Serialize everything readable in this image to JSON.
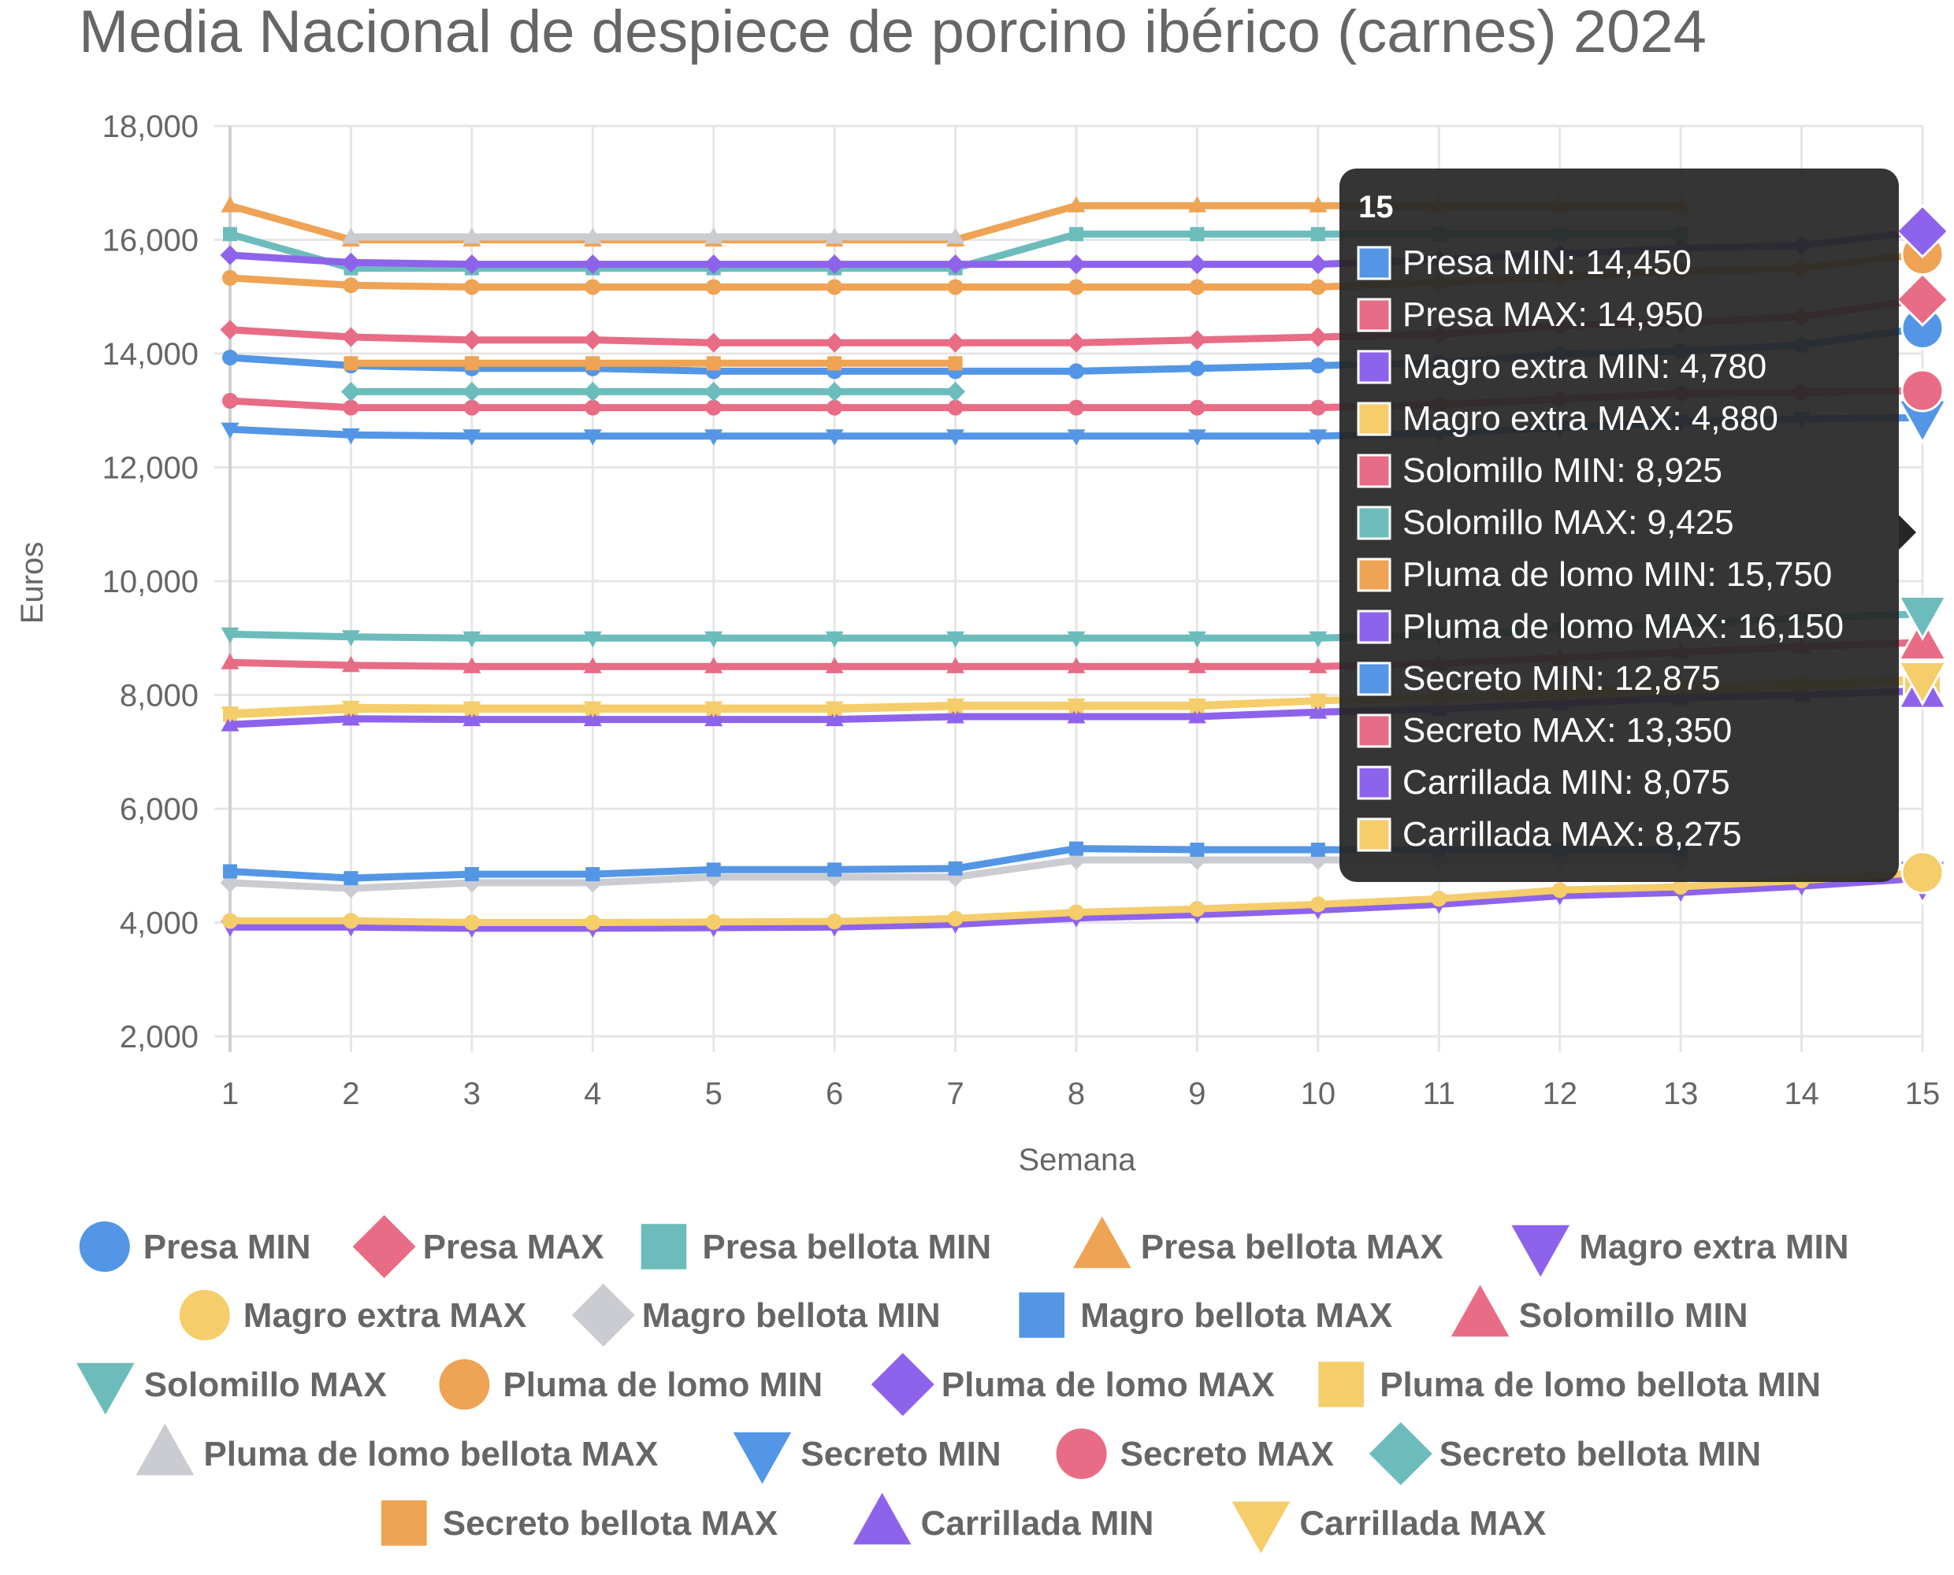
{
  "chart_data": {
    "type": "line",
    "title": "Media Nacional de despiece de porcino ibérico (carnes) 2024",
    "xlabel": "Semana",
    "ylabel": "Euros",
    "ylim": [
      2000,
      18000
    ],
    "yticks": [
      2000,
      4000,
      6000,
      8000,
      10000,
      12000,
      14000,
      16000,
      18000
    ],
    "ytick_labels": [
      "2,000",
      "4,000",
      "6,000",
      "8,000",
      "10,000",
      "12,000",
      "14,000",
      "16,000",
      "18,000"
    ],
    "x": [
      1,
      2,
      3,
      4,
      5,
      6,
      7,
      8,
      9,
      10,
      11,
      12,
      13,
      14,
      15
    ],
    "grid": true,
    "legend_position": "bottom",
    "series": [
      {
        "name": "Presa MIN",
        "color": "#5496e6",
        "marker": "circle",
        "values": [
          13930,
          13790,
          13740,
          13740,
          13690,
          13690,
          13690,
          13690,
          13740,
          13790,
          13840,
          13990,
          14040,
          14150,
          14450
        ]
      },
      {
        "name": "Presa MAX",
        "color": "#e86c85",
        "marker": "diamond",
        "values": [
          14420,
          14290,
          14240,
          14240,
          14190,
          14190,
          14190,
          14190,
          14240,
          14290,
          14340,
          14490,
          14540,
          14650,
          14950
        ]
      },
      {
        "name": "Presa bellota MIN",
        "color": "#6dbcbc",
        "marker": "square",
        "values": [
          16100,
          15500,
          15500,
          15500,
          15500,
          15500,
          15500,
          16100,
          16100,
          16100,
          16100,
          16100,
          16100,
          null,
          null
        ]
      },
      {
        "name": "Presa bellota MAX",
        "color": "#eea355",
        "marker": "triangle",
        "values": [
          16600,
          16000,
          16000,
          16000,
          16000,
          16000,
          16000,
          16600,
          16600,
          16600,
          16600,
          16600,
          16600,
          null,
          null
        ]
      },
      {
        "name": "Magro extra MIN",
        "color": "#8e63ec",
        "marker": "triangle-down",
        "values": [
          3920,
          3920,
          3900,
          3900,
          3910,
          3920,
          3970,
          4080,
          4140,
          4220,
          4320,
          4470,
          4530,
          4640,
          4780
        ]
      },
      {
        "name": "Magro extra MAX",
        "color": "#f5cd6a",
        "marker": "circle",
        "values": [
          4030,
          4030,
          4000,
          4000,
          4010,
          4020,
          4070,
          4180,
          4240,
          4320,
          4420,
          4570,
          4630,
          4740,
          4880
        ]
      },
      {
        "name": "Magro bellota MIN",
        "color": "#cbccd1",
        "marker": "diamond",
        "values": [
          4700,
          4600,
          4700,
          4700,
          4800,
          4800,
          4800,
          5100,
          5100,
          5100,
          5100,
          5100,
          5100,
          null,
          null
        ]
      },
      {
        "name": "Magro bellota MAX",
        "color": "#5496e6",
        "marker": "square",
        "values": [
          4900,
          4780,
          4850,
          4850,
          4930,
          4930,
          4950,
          5300,
          5280,
          5280,
          5280,
          5280,
          5280,
          null,
          null
        ]
      },
      {
        "name": "Solomillo MIN",
        "color": "#e86c85",
        "marker": "triangle",
        "values": [
          8570,
          8520,
          8500,
          8500,
          8500,
          8500,
          8500,
          8500,
          8500,
          8500,
          8550,
          8650,
          8750,
          8850,
          8925
        ]
      },
      {
        "name": "Solomillo MAX",
        "color": "#6dbcbc",
        "marker": "triangle-down",
        "values": [
          9070,
          9020,
          9000,
          9000,
          9000,
          9000,
          9000,
          9000,
          9000,
          9000,
          9050,
          9150,
          9250,
          9350,
          9425
        ]
      },
      {
        "name": "Pluma de lomo MIN",
        "color": "#eea355",
        "marker": "circle",
        "values": [
          15330,
          15200,
          15170,
          15170,
          15170,
          15170,
          15170,
          15170,
          15170,
          15170,
          15250,
          15350,
          15450,
          15500,
          15750
        ]
      },
      {
        "name": "Pluma de lomo MAX",
        "color": "#8e63ec",
        "marker": "diamond",
        "values": [
          15730,
          15600,
          15570,
          15570,
          15570,
          15570,
          15570,
          15570,
          15570,
          15570,
          15650,
          15750,
          15850,
          15900,
          16150
        ]
      },
      {
        "name": "Pluma de lomo bellota MIN",
        "color": "#f5cd6a",
        "marker": "square",
        "values": [
          7650,
          7750,
          7750,
          7750,
          7750,
          7750,
          7800,
          7800,
          7800,
          7900,
          7950,
          8000,
          8050,
          8150,
          8250
        ]
      },
      {
        "name": "Pluma de lomo bellota MAX",
        "color": "#cbccd1",
        "marker": "triangle",
        "values": [
          null,
          16050,
          16050,
          16050,
          16050,
          16050,
          16050,
          null,
          null,
          null,
          null,
          null,
          null,
          null,
          null
        ]
      },
      {
        "name": "Secreto MIN",
        "color": "#5496e6",
        "marker": "triangle-down",
        "values": [
          12670,
          12570,
          12550,
          12550,
          12550,
          12550,
          12550,
          12550,
          12550,
          12550,
          12600,
          12700,
          12800,
          12850,
          12875
        ]
      },
      {
        "name": "Secreto MAX",
        "color": "#e86c85",
        "marker": "circle",
        "values": [
          13170,
          13050,
          13050,
          13050,
          13050,
          13050,
          13050,
          13050,
          13050,
          13050,
          13100,
          13200,
          13300,
          13320,
          13350
        ]
      },
      {
        "name": "Secreto bellota MIN",
        "color": "#6dbcbc",
        "marker": "diamond",
        "values": [
          null,
          13330,
          13330,
          13330,
          13330,
          13330,
          13330,
          null,
          null,
          null,
          null,
          null,
          null,
          null,
          null
        ]
      },
      {
        "name": "Secreto bellota MAX",
        "color": "#eea355",
        "marker": "square",
        "values": [
          null,
          13830,
          13830,
          13830,
          13830,
          13830,
          13830,
          null,
          null,
          null,
          null,
          null,
          null,
          null,
          null
        ]
      },
      {
        "name": "Carrillada MIN",
        "color": "#8e63ec",
        "marker": "triangle",
        "values": [
          7480,
          7580,
          7570,
          7570,
          7570,
          7570,
          7620,
          7620,
          7620,
          7700,
          7750,
          7850,
          7950,
          8000,
          8075
        ]
      },
      {
        "name": "Carrillada MAX",
        "color": "#f5cd6a",
        "marker": "triangle-down",
        "values": [
          7680,
          7780,
          7770,
          7770,
          7770,
          7770,
          7820,
          7820,
          7820,
          7900,
          7950,
          8050,
          8150,
          8200,
          8275
        ]
      }
    ],
    "tooltip": {
      "title": "15",
      "items": [
        {
          "label": "Presa MIN: 14,450",
          "color": "#5496e6"
        },
        {
          "label": "Presa MAX: 14,950",
          "color": "#e86c85"
        },
        {
          "label": "Magro extra MIN: 4,780",
          "color": "#8e63ec"
        },
        {
          "label": "Magro extra MAX: 4,880",
          "color": "#f5cd6a"
        },
        {
          "label": "Solomillo MIN: 8,925",
          "color": "#e86c85"
        },
        {
          "label": "Solomillo MAX: 9,425",
          "color": "#6dbcbc"
        },
        {
          "label": "Pluma de lomo MIN: 15,750",
          "color": "#eea355"
        },
        {
          "label": "Pluma de lomo MAX: 16,150",
          "color": "#8e63ec"
        },
        {
          "label": "Secreto MIN: 12,875",
          "color": "#5496e6"
        },
        {
          "label": "Secreto MAX: 13,350",
          "color": "#e86c85"
        },
        {
          "label": "Carrillada MIN: 8,075",
          "color": "#8e63ec"
        },
        {
          "label": "Carrillada MAX: 8,275",
          "color": "#f5cd6a"
        }
      ]
    }
  }
}
